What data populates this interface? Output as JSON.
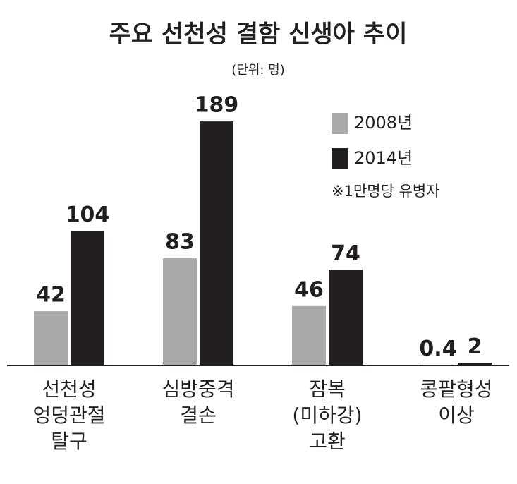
{
  "chart_data": {
    "type": "bar",
    "title": "주요 선천성 결함 신생아 추이",
    "subtitle": "(단위: 명)",
    "note": "※1만명당 유병자",
    "categories": [
      [
        "선천성",
        "엉덩관절",
        "탈구"
      ],
      [
        "심방중격",
        "결손"
      ],
      [
        "잠복",
        "(미하강)",
        "고환"
      ],
      [
        "콩팥형성",
        "이상"
      ]
    ],
    "series": [
      {
        "name": "2008년",
        "color": "#a8a9ab",
        "values": [
          42,
          83,
          46,
          0.4
        ]
      },
      {
        "name": "2014년",
        "color": "#231f20",
        "values": [
          104,
          189,
          74,
          2
        ]
      }
    ],
    "ylim": [
      0,
      200
    ]
  }
}
